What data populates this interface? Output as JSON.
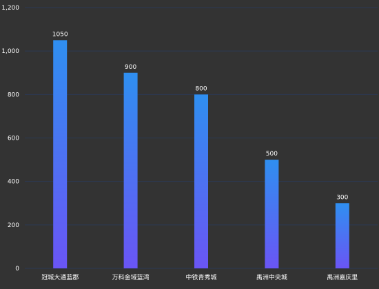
{
  "chart_data": {
    "type": "bar",
    "categories": [
      "冠城大通蓝郡",
      "万科金域蓝湾",
      "中铁青秀城",
      "禹洲中央城",
      "禹洲嘉庆里"
    ],
    "values": [
      1050,
      900,
      800,
      500,
      300
    ],
    "data_labels": [
      "1050",
      "900",
      "800",
      "500",
      "300"
    ],
    "ylim": [
      0,
      1200
    ],
    "yticks": [
      0,
      200,
      400,
      600,
      800,
      1000,
      1200
    ],
    "ytick_labels": [
      "0",
      "200",
      "400",
      "600",
      "800",
      "1,000",
      "1,200"
    ],
    "grid": true,
    "legend": "none",
    "colors": {
      "background": "#333333",
      "gridline": "#2b3a55",
      "bar_top": "#2f8ff0",
      "bar_bottom": "#6a55f5",
      "text": "#ffffff"
    }
  }
}
